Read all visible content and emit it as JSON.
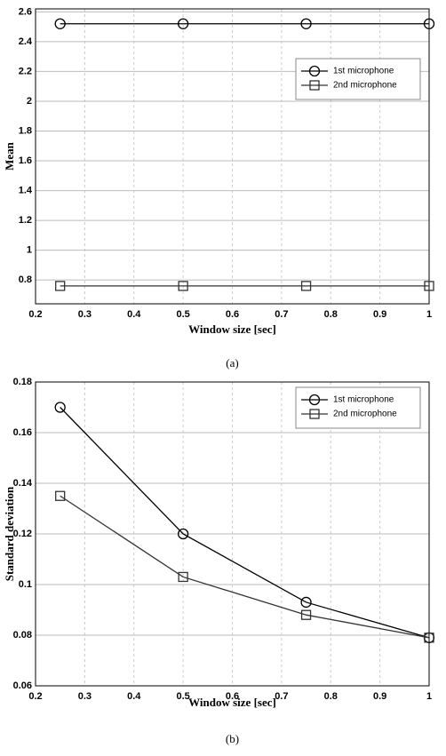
{
  "chart_data": [
    {
      "type": "line",
      "caption": "(a)",
      "xlabel": "Window size [sec]",
      "ylabel": "Mean",
      "x": [
        0.25,
        0.5,
        0.75,
        1
      ],
      "series": [
        {
          "name": "1st microphone",
          "color": "#000000",
          "marker": "circle",
          "values": [
            2.52,
            2.52,
            2.52,
            2.52
          ]
        },
        {
          "name": "2nd microphone",
          "color": "#333333",
          "marker": "square",
          "values": [
            0.76,
            0.76,
            0.76,
            0.76
          ]
        }
      ],
      "xlim": [
        0.2,
        1
      ],
      "xticks": [
        0.2,
        0.3,
        0.4,
        0.5,
        0.6,
        0.7,
        0.8,
        0.9,
        1
      ],
      "ylim": [
        0.64,
        2.62
      ],
      "yticks": [
        0.8,
        1,
        1.2,
        1.4,
        1.6,
        1.8,
        2,
        2.2,
        2.4,
        2.6
      ],
      "grid": true,
      "legend": "upper right"
    },
    {
      "type": "line",
      "caption": "(b)",
      "xlabel": "Window size [sec]",
      "ylabel": "Standard deviation",
      "x": [
        0.25,
        0.5,
        0.75,
        1
      ],
      "series": [
        {
          "name": "1st microphone",
          "color": "#000000",
          "marker": "circle",
          "values": [
            0.17,
            0.12,
            0.093,
            0.079
          ]
        },
        {
          "name": "2nd microphone",
          "color": "#333333",
          "marker": "square",
          "values": [
            0.135,
            0.103,
            0.088,
            0.079
          ]
        }
      ],
      "xlim": [
        0.2,
        1
      ],
      "xticks": [
        0.2,
        0.3,
        0.4,
        0.5,
        0.6,
        0.7,
        0.8,
        0.9,
        1
      ],
      "ylim": [
        0.06,
        0.18
      ],
      "yticks": [
        0.06,
        0.08,
        0.1,
        0.12,
        0.14,
        0.16,
        0.18
      ],
      "grid": true,
      "legend": "upper right"
    }
  ]
}
